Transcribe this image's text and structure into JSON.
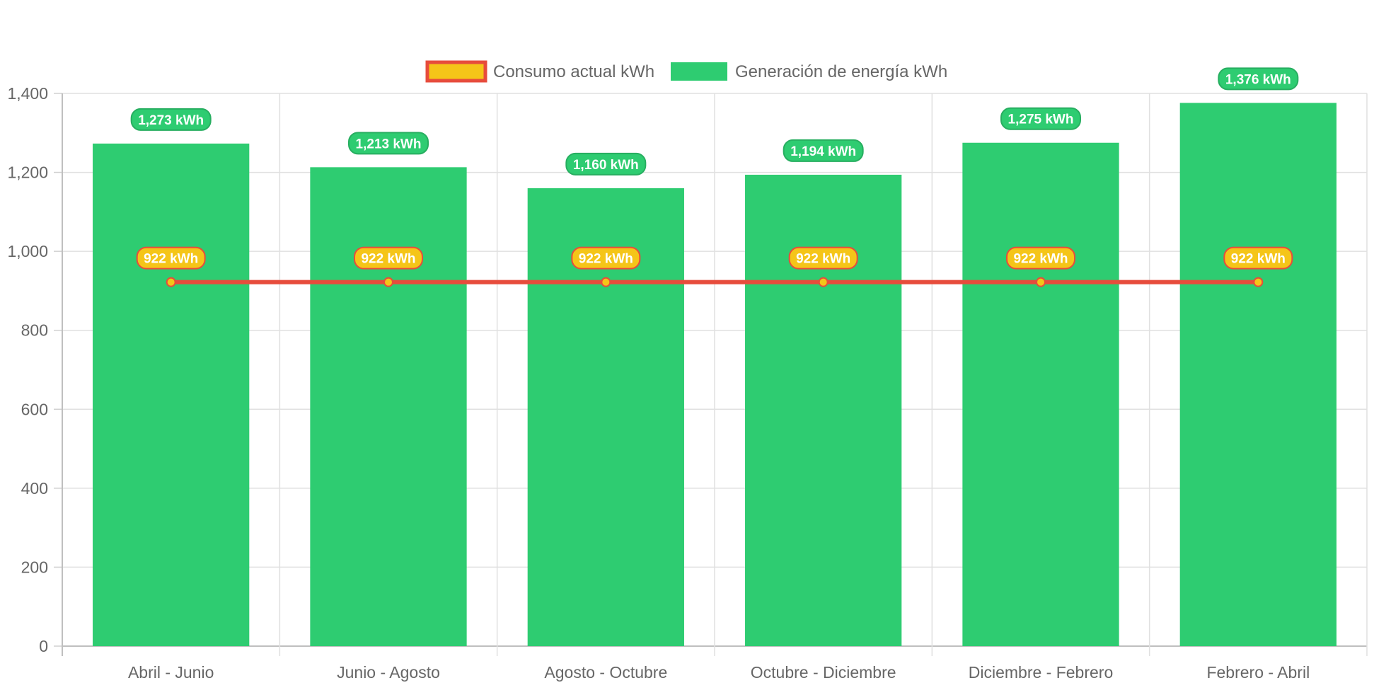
{
  "chart_data": {
    "type": "bar",
    "categories": [
      "Abril - Junio",
      "Junio - Agosto",
      "Agosto - Octubre",
      "Octubre - Diciembre",
      "Diciembre - Febrero",
      "Febrero - Abril"
    ],
    "series": [
      {
        "name": "Consumo actual kWh",
        "type": "line",
        "values": [
          922,
          922,
          922,
          922,
          922,
          922
        ],
        "labels": [
          "922 kWh",
          "922 kWh",
          "922 kWh",
          "922 kWh",
          "922 kWh",
          "922 kWh"
        ],
        "line_color": "#e74c3c",
        "fill_color": "#f5c518"
      },
      {
        "name": "Generación de energía kWh",
        "type": "bar",
        "values": [
          1273,
          1213,
          1160,
          1194,
          1275,
          1376
        ],
        "labels": [
          "1,273 kWh",
          "1,213 kWh",
          "1,160 kWh",
          "1,194 kWh",
          "1,275 kWh",
          "1,376 kWh"
        ],
        "color": "#2ecc71",
        "label_border": "#27ae60"
      }
    ],
    "y_ticks": [
      "0",
      "200",
      "400",
      "600",
      "800",
      "1,000",
      "1,200",
      "1,400"
    ],
    "ylim": [
      0,
      1400
    ],
    "grid": true,
    "legend": "top-center",
    "title": "",
    "xlabel": "",
    "ylabel": ""
  }
}
